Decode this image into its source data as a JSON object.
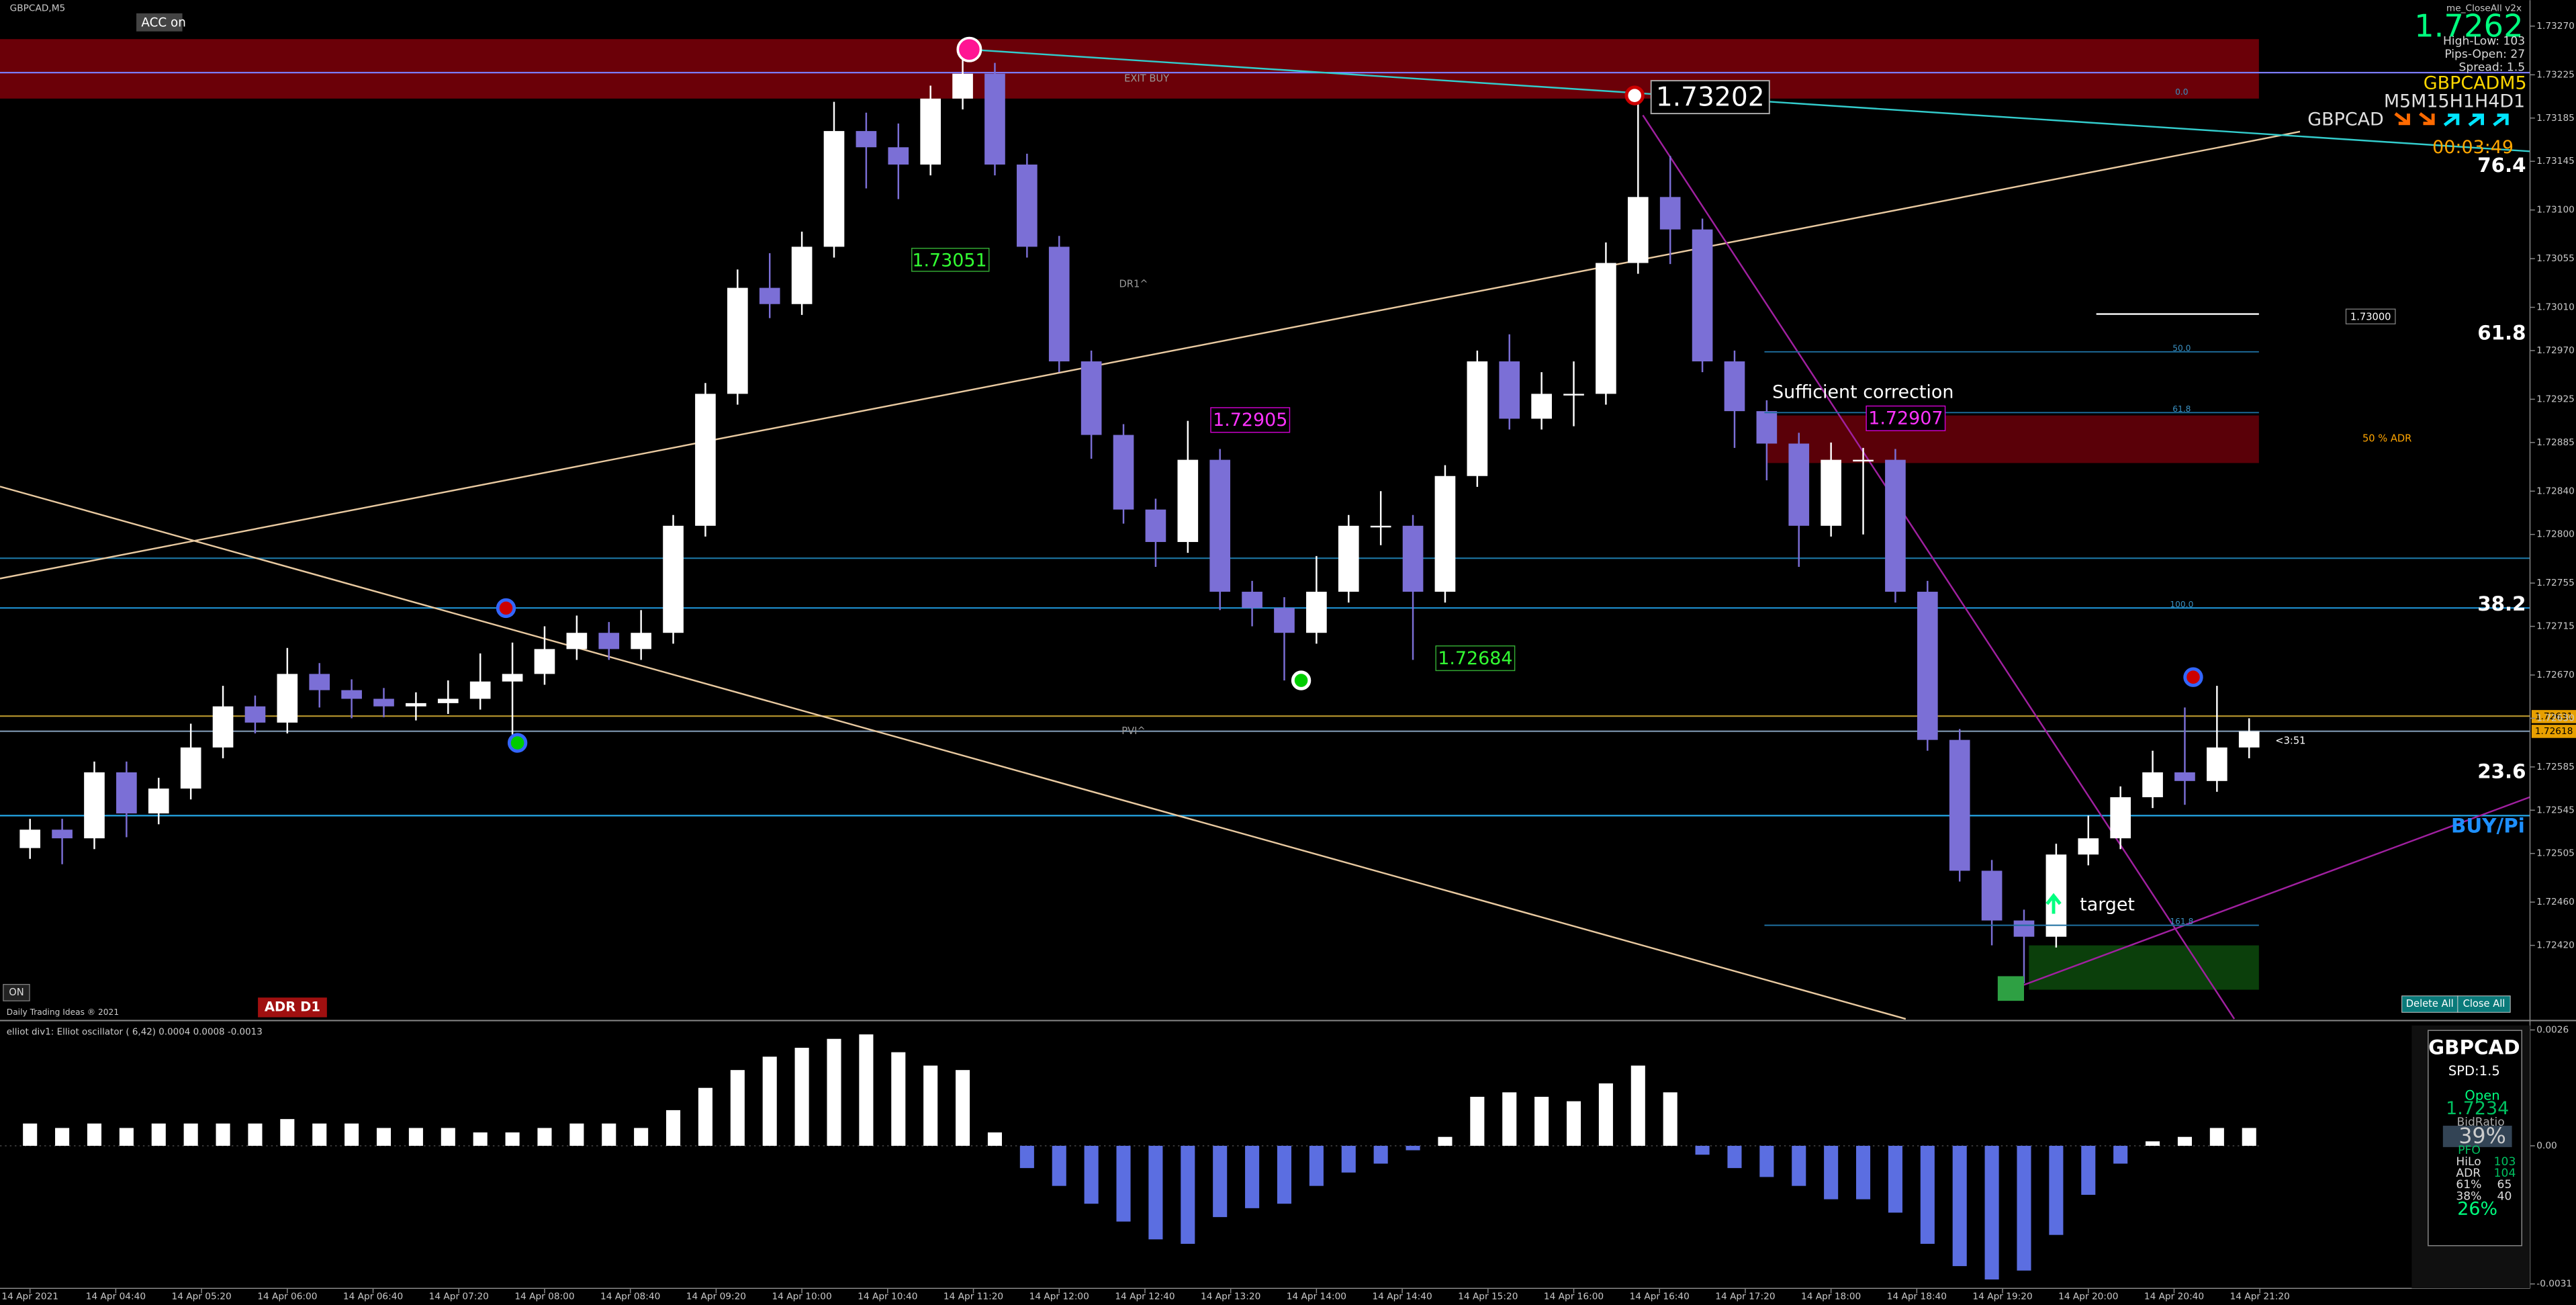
{
  "chart_data": [
    {
      "type": "candlestick",
      "title": "GBPCAD,M5",
      "x": [
        "14 Apr 04:00",
        "14 Apr 04:15",
        "14 Apr 04:30",
        "14 Apr 04:45",
        "14 Apr 05:00",
        "14 Apr 05:15",
        "14 Apr 05:30",
        "14 Apr 05:45",
        "14 Apr 06:00",
        "14 Apr 06:15",
        "14 Apr 06:30",
        "14 Apr 06:45",
        "14 Apr 07:00",
        "14 Apr 07:15",
        "14 Apr 07:30",
        "14 Apr 07:45",
        "14 Apr 08:00",
        "14 Apr 08:15",
        "14 Apr 08:30",
        "14 Apr 08:45",
        "14 Apr 09:00",
        "14 Apr 09:15",
        "14 Apr 09:30",
        "14 Apr 09:45",
        "14 Apr 10:00",
        "14 Apr 10:15",
        "14 Apr 10:30",
        "14 Apr 10:45",
        "14 Apr 11:00",
        "14 Apr 11:15",
        "14 Apr 11:30",
        "14 Apr 11:45",
        "14 Apr 12:00",
        "14 Apr 12:15",
        "14 Apr 12:30",
        "14 Apr 12:45",
        "14 Apr 13:00",
        "14 Apr 13:15",
        "14 Apr 13:30",
        "14 Apr 13:45",
        "14 Apr 14:00",
        "14 Apr 14:15",
        "14 Apr 14:30",
        "14 Apr 14:45",
        "14 Apr 15:00",
        "14 Apr 15:15",
        "14 Apr 15:30",
        "14 Apr 15:45",
        "14 Apr 16:00",
        "14 Apr 16:15",
        "14 Apr 16:30",
        "14 Apr 16:45",
        "14 Apr 17:00",
        "14 Apr 17:15",
        "14 Apr 17:30",
        "14 Apr 17:45",
        "14 Apr 18:00",
        "14 Apr 18:15",
        "14 Apr 18:30",
        "14 Apr 18:45",
        "14 Apr 19:00",
        "14 Apr 19:15",
        "14 Apr 19:30",
        "14 Apr 19:45",
        "14 Apr 20:00",
        "14 Apr 20:15",
        "14 Apr 20:30",
        "14 Apr 20:45",
        "14 Apr 21:00",
        "14 Apr 21:15"
      ],
      "open": [
        1.7251,
        1.72527,
        1.72519,
        1.7258,
        1.72542,
        1.72565,
        1.72603,
        1.72641,
        1.72626,
        1.72671,
        1.72656,
        1.72648,
        1.72641,
        1.72644,
        1.72648,
        1.72664,
        1.72671,
        1.72694,
        1.72709,
        1.72694,
        1.72709,
        1.72808,
        1.7293,
        1.73028,
        1.73013,
        1.73066,
        1.73173,
        1.73158,
        1.73142,
        1.73203,
        1.73226,
        1.73142,
        1.73066,
        1.7296,
        1.72892,
        1.72823,
        1.72793,
        1.72869,
        1.72747,
        1.72732,
        1.72709,
        1.72747,
        1.72808,
        1.72808,
        1.72747,
        1.72854,
        1.7296,
        1.72907,
        1.7293,
        1.7293,
        1.73051,
        1.73112,
        1.73082,
        1.7296,
        1.72914,
        1.72884,
        1.72808,
        1.72869,
        1.72869,
        1.72747,
        1.7261,
        1.72489,
        1.72443,
        1.72428,
        1.72504,
        1.72519,
        1.72557,
        1.7258,
        1.72572,
        1.72603
      ],
      "high": [
        1.72537,
        1.72537,
        1.7259,
        1.7259,
        1.72575,
        1.72625,
        1.7266,
        1.72651,
        1.72695,
        1.72681,
        1.72666,
        1.72658,
        1.72654,
        1.72665,
        1.7269,
        1.727,
        1.72715,
        1.72725,
        1.72719,
        1.7273,
        1.72818,
        1.7294,
        1.73045,
        1.7306,
        1.7308,
        1.732,
        1.7319,
        1.7318,
        1.73215,
        1.7325,
        1.73236,
        1.73152,
        1.73076,
        1.7297,
        1.72902,
        1.72833,
        1.72905,
        1.72879,
        1.72757,
        1.72742,
        1.7278,
        1.72818,
        1.7284,
        1.72818,
        1.72864,
        1.7297,
        1.72985,
        1.7295,
        1.7296,
        1.7307,
        1.73202,
        1.7315,
        1.73092,
        1.7297,
        1.72924,
        1.72894,
        1.72885,
        1.7288,
        1.72879,
        1.72757,
        1.7262,
        1.72499,
        1.72453,
        1.72514,
        1.7254,
        1.72567,
        1.726,
        1.7264,
        1.7266,
        1.7263
      ],
      "low": [
        1.725,
        1.72495,
        1.72509,
        1.7252,
        1.72532,
        1.72555,
        1.72593,
        1.72616,
        1.72616,
        1.7264,
        1.7263,
        1.72631,
        1.72628,
        1.72634,
        1.72638,
        1.72615,
        1.72661,
        1.72684,
        1.72684,
        1.72684,
        1.72699,
        1.72798,
        1.7292,
        1.73,
        1.73003,
        1.73056,
        1.7312,
        1.7311,
        1.73132,
        1.73193,
        1.73132,
        1.73056,
        1.7295,
        1.7287,
        1.7281,
        1.7277,
        1.72783,
        1.7273,
        1.72715,
        1.72665,
        1.72699,
        1.72737,
        1.7279,
        1.72684,
        1.72737,
        1.72844,
        1.72897,
        1.72897,
        1.729,
        1.7292,
        1.73041,
        1.7305,
        1.7295,
        1.7288,
        1.7285,
        1.7277,
        1.72798,
        1.728,
        1.72737,
        1.726,
        1.72479,
        1.7242,
        1.72385,
        1.72418,
        1.72494,
        1.72509,
        1.72547,
        1.7255,
        1.72562,
        1.72593
      ],
      "close": [
        1.72527,
        1.72519,
        1.7258,
        1.72542,
        1.72565,
        1.72603,
        1.72641,
        1.72626,
        1.72671,
        1.72656,
        1.72648,
        1.72641,
        1.72644,
        1.72648,
        1.72664,
        1.72671,
        1.72694,
        1.72709,
        1.72694,
        1.72709,
        1.72808,
        1.7293,
        1.73028,
        1.73013,
        1.73066,
        1.73173,
        1.73158,
        1.73142,
        1.73203,
        1.73226,
        1.73142,
        1.73066,
        1.7296,
        1.72892,
        1.72823,
        1.72793,
        1.72869,
        1.72747,
        1.72732,
        1.72709,
        1.72747,
        1.72808,
        1.72808,
        1.72747,
        1.72854,
        1.7296,
        1.72907,
        1.7293,
        1.7293,
        1.73051,
        1.73112,
        1.73082,
        1.7296,
        1.72914,
        1.72884,
        1.72808,
        1.72869,
        1.72869,
        1.72747,
        1.7261,
        1.72489,
        1.72443,
        1.72428,
        1.72504,
        1.72519,
        1.72557,
        1.7258,
        1.72572,
        1.72603,
        1.72618
      ],
      "up_color": "#ffffff",
      "down_color": "#7b6fd6",
      "xlim": [
        "14 Apr 03:46",
        "14 Apr 23:26"
      ],
      "ylim": [
        1.72352,
        1.73294
      ],
      "yticks": [
        {
          "value": 1.7327,
          "label": "1.73270"
        },
        1.73225,
        1.73185,
        1.73145,
        {
          "value": 1.731,
          "label": "1.73100"
        },
        1.73055,
        {
          "value": 1.7301,
          "label": "1.73010"
        },
        {
          "value": 1.7297,
          "label": "1.72970"
        },
        1.72925,
        1.72885,
        {
          "value": 1.7284,
          "label": "1.72840"
        },
        {
          "value": 1.728,
          "label": "1.72800"
        },
        1.72755,
        1.72715,
        {
          "value": 1.7267,
          "label": "1.72670"
        },
        {
          "value": 1.7263,
          "label": "1.72630"
        },
        1.72585,
        1.72545,
        1.72505,
        {
          "value": 1.7246,
          "label": "1.72460"
        },
        {
          "value": 1.7242,
          "label": "1.72420"
        }
      ],
      "xticks": [
        {
          "value": "14 Apr 04:00",
          "label": "14 Apr 2021"
        },
        "14 Apr 04:40",
        "14 Apr 05:20",
        "14 Apr 06:00",
        "14 Apr 06:40",
        "14 Apr 07:20",
        "14 Apr 08:00",
        "14 Apr 08:40",
        "14 Apr 09:20",
        "14 Apr 10:00",
        "14 Apr 10:40",
        "14 Apr 11:20",
        "14 Apr 12:00",
        "14 Apr 12:40",
        "14 Apr 13:20",
        "14 Apr 14:00",
        "14 Apr 14:40",
        "14 Apr 15:20",
        "14 Apr 16:00",
        "14 Apr 16:40",
        "14 Apr 17:20",
        "14 Apr 18:00",
        "14 Apr 18:40",
        "14 Apr 19:20",
        "14 Apr 20:00",
        "14 Apr 20:40",
        "14 Apr 21:20"
      ],
      "levels": [
        {
          "value": 1.73227,
          "color": "#7b7bff"
        },
        {
          "value": 1.72778,
          "color": "#1b6f9a"
        },
        {
          "value": 1.72732,
          "color": "#1e90d0"
        },
        {
          "value": 1.72632,
          "color": "#b8962e"
        },
        {
          "value": 1.72618,
          "color": "#7890a8"
        },
        {
          "value": 1.7254,
          "color": "#25a8e8"
        }
      ],
      "zones": [
        {
          "from": 1.73258,
          "to": 1.73203,
          "color": "#6b0008"
        },
        {
          "from": 1.7291,
          "to": 1.72866,
          "color": "#5a0008"
        },
        {
          "from": 1.7242,
          "to": 1.72379,
          "color": "#0b3f0b"
        }
      ]
    },
    {
      "type": "bar",
      "title": "elliot div1: Elliot oscillator ( 6,42) 0.0004 0.0008 -0.0013",
      "x": [
        "14 Apr 04:00",
        "14 Apr 04:15",
        "14 Apr 04:30",
        "14 Apr 04:45",
        "14 Apr 05:00",
        "14 Apr 05:15",
        "14 Apr 05:30",
        "14 Apr 05:45",
        "14 Apr 06:00",
        "14 Apr 06:15",
        "14 Apr 06:30",
        "14 Apr 06:45",
        "14 Apr 07:00",
        "14 Apr 07:15",
        "14 Apr 07:30",
        "14 Apr 07:45",
        "14 Apr 08:00",
        "14 Apr 08:15",
        "14 Apr 08:30",
        "14 Apr 08:45",
        "14 Apr 09:00",
        "14 Apr 09:15",
        "14 Apr 09:30",
        "14 Apr 09:45",
        "14 Apr 10:00",
        "14 Apr 10:15",
        "14 Apr 10:30",
        "14 Apr 10:45",
        "14 Apr 11:00",
        "14 Apr 11:15",
        "14 Apr 11:30",
        "14 Apr 11:45",
        "14 Apr 12:00",
        "14 Apr 12:15",
        "14 Apr 12:30",
        "14 Apr 12:45",
        "14 Apr 13:00",
        "14 Apr 13:15",
        "14 Apr 13:30",
        "14 Apr 13:45",
        "14 Apr 14:00",
        "14 Apr 14:15",
        "14 Apr 14:30",
        "14 Apr 14:45",
        "14 Apr 15:00",
        "14 Apr 15:15",
        "14 Apr 15:30",
        "14 Apr 15:45",
        "14 Apr 16:00",
        "14 Apr 16:15",
        "14 Apr 16:30",
        "14 Apr 16:45",
        "14 Apr 17:00",
        "14 Apr 17:15",
        "14 Apr 17:30",
        "14 Apr 17:45",
        "14 Apr 18:00",
        "14 Apr 18:15",
        "14 Apr 18:30",
        "14 Apr 18:45",
        "14 Apr 19:00",
        "14 Apr 19:15",
        "14 Apr 19:30",
        "14 Apr 19:45",
        "14 Apr 20:00",
        "14 Apr 20:15",
        "14 Apr 20:30",
        "14 Apr 20:45",
        "14 Apr 21:00",
        "14 Apr 21:15"
      ],
      "values": [
        0.0005,
        0.0004,
        0.0005,
        0.0004,
        0.0005,
        0.0005,
        0.0005,
        0.0005,
        0.0006,
        0.0005,
        0.0005,
        0.0004,
        0.0004,
        0.0004,
        0.0003,
        0.0003,
        0.0004,
        0.0005,
        0.0005,
        0.0004,
        0.0008,
        0.0013,
        0.0017,
        0.002,
        0.0022,
        0.0024,
        0.0025,
        0.0021,
        0.0018,
        0.0017,
        0.0003,
        -0.0005,
        -0.0009,
        -0.0013,
        -0.0017,
        -0.0021,
        -0.0022,
        -0.0016,
        -0.0014,
        -0.0013,
        -0.0009,
        -0.0006,
        -0.0004,
        -0.0001,
        0.0002,
        0.0011,
        0.0012,
        0.0011,
        0.001,
        0.0014,
        0.0018,
        0.0012,
        -0.0002,
        -0.0005,
        -0.0007,
        -0.0009,
        -0.0012,
        -0.0012,
        -0.0015,
        -0.0022,
        -0.0027,
        -0.003,
        -0.0028,
        -0.002,
        -0.0011,
        -0.0004,
        0.0001,
        0.0002,
        0.0004,
        0.0004
      ],
      "up_color": "#ffffff",
      "down_color": "#5b6ee1",
      "ylim": [
        -0.0032,
        0.0027
      ],
      "yticks": [
        0.0026,
        {
          "value": 0,
          "label": "0.00"
        },
        -0.0031
      ]
    }
  ],
  "ui": {
    "acc": "ACC on",
    "expert": "me_CloseAll v2x",
    "bid": "1.7262",
    "high_low": "High-Low: 103",
    "pips_open": "Pips-Open: 27",
    "spread": "Spread: 1.5",
    "symbol_tf": "GBPCADM5",
    "timeframes": "M5M15H1H4D1",
    "symbol": "GBPCAD",
    "timer": "00:03:49",
    "fib_big": [
      "76.4",
      "61.8",
      "38.2",
      "23.6"
    ],
    "buy_label": "BUY/Pi",
    "fib_small": [
      "0.0",
      "50.0",
      "61.8",
      "100.0",
      "161.8"
    ],
    "annotations": [
      "1.73202",
      "1.73051",
      "1.72905",
      "1.72684",
      "1.72907",
      "Sufficient correction",
      "target",
      "50 % ADR",
      "EXIT BUY",
      "DR1^",
      "PVI^",
      "1.73000",
      "<3:51"
    ],
    "price_tags": [
      "1.72631",
      "1.72618"
    ],
    "on": "ON",
    "adr": "ADR D1",
    "copyright": "Daily Trading Ideas ® 2021",
    "buttons": [
      "Delete All",
      "Close All"
    ],
    "panel": [
      "GBPCAD",
      "SPD:1.5",
      "Open",
      "1.7234",
      "BidRatio",
      "39%",
      "PFO",
      "HiLo",
      "103",
      "ADR",
      "104",
      "61%",
      "65",
      "38%",
      "40",
      "26%"
    ]
  }
}
